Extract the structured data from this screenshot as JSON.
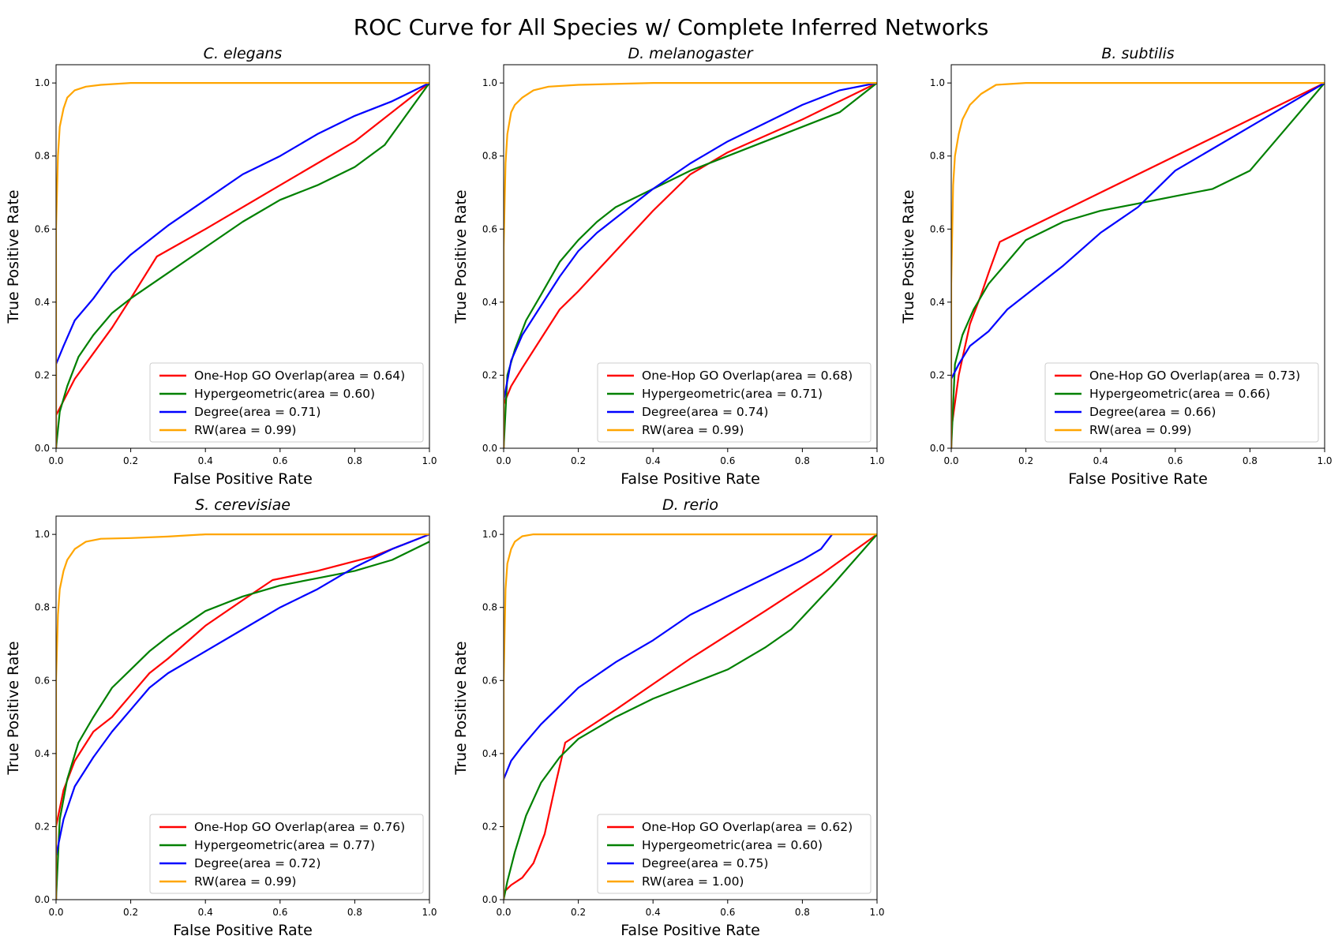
{
  "figure": {
    "title": "ROC Curve for All Species w/ Complete Inferred Networks"
  },
  "series_colors": {
    "One-Hop GO Overlap": "#ff0000",
    "Hypergeometric": "#008000",
    "Degree": "#0000ff",
    "RW": "#ffa500"
  },
  "chart_data": [
    {
      "type": "line",
      "title": "C. elegans",
      "xlabel": "False Positive Rate",
      "ylabel": "True Positive Rate",
      "xlim": [
        0,
        1
      ],
      "ylim": [
        0,
        1.05
      ],
      "xticks": [
        "0.0",
        "0.2",
        "0.4",
        "0.6",
        "0.8",
        "1.0"
      ],
      "yticks": [
        "0.0",
        "0.2",
        "0.4",
        "0.6",
        "0.8",
        "1.0"
      ],
      "grid": false,
      "legend_position": "lower-right",
      "series": [
        {
          "name": "One-Hop GO Overlap(area = 0.64)",
          "color": "#ff0000",
          "x": [
            0,
            0,
            0.02,
            0.05,
            0.1,
            0.15,
            0.2,
            0.27,
            0.4,
            0.6,
            0.8,
            1.0
          ],
          "y": [
            0,
            0.09,
            0.13,
            0.19,
            0.26,
            0.33,
            0.41,
            0.525,
            0.6,
            0.72,
            0.84,
            1.0
          ]
        },
        {
          "name": "Hypergeometric(area = 0.60)",
          "color": "#008000",
          "x": [
            0,
            0.01,
            0.03,
            0.06,
            0.1,
            0.15,
            0.2,
            0.3,
            0.4,
            0.5,
            0.6,
            0.7,
            0.8,
            0.88,
            1.0
          ],
          "y": [
            0,
            0.1,
            0.17,
            0.25,
            0.31,
            0.37,
            0.41,
            0.48,
            0.55,
            0.62,
            0.68,
            0.72,
            0.77,
            0.83,
            1.0
          ]
        },
        {
          "name": "Degree(area = 0.71)",
          "color": "#0000ff",
          "x": [
            0,
            0,
            0.02,
            0.05,
            0.1,
            0.15,
            0.2,
            0.3,
            0.4,
            0.5,
            0.6,
            0.7,
            0.8,
            0.9,
            1.0
          ],
          "y": [
            0,
            0.23,
            0.28,
            0.35,
            0.41,
            0.48,
            0.53,
            0.61,
            0.68,
            0.75,
            0.8,
            0.86,
            0.91,
            0.95,
            1.0
          ]
        },
        {
          "name": "RW(area = 0.99)",
          "color": "#ffa500",
          "x": [
            0,
            0,
            0.005,
            0.01,
            0.02,
            0.03,
            0.05,
            0.08,
            0.12,
            0.2,
            0.4,
            1.0
          ],
          "y": [
            0,
            0.6,
            0.8,
            0.88,
            0.93,
            0.96,
            0.98,
            0.99,
            0.995,
            1.0,
            1.0,
            1.0
          ]
        }
      ]
    },
    {
      "type": "line",
      "title": "D. melanogaster",
      "xlabel": "False Positive Rate",
      "ylabel": "True Positive Rate",
      "xlim": [
        0,
        1
      ],
      "ylim": [
        0,
        1.05
      ],
      "xticks": [
        "0.0",
        "0.2",
        "0.4",
        "0.6",
        "0.8",
        "1.0"
      ],
      "yticks": [
        "0.0",
        "0.2",
        "0.4",
        "0.6",
        "0.8",
        "1.0"
      ],
      "grid": false,
      "legend_position": "lower-right",
      "series": [
        {
          "name": "One-Hop GO Overlap(area = 0.68)",
          "color": "#ff0000",
          "x": [
            0,
            0,
            0.02,
            0.05,
            0.1,
            0.15,
            0.2,
            0.3,
            0.4,
            0.5,
            0.6,
            0.8,
            1.0
          ],
          "y": [
            0,
            0.12,
            0.17,
            0.22,
            0.3,
            0.38,
            0.43,
            0.54,
            0.65,
            0.75,
            0.81,
            0.9,
            1.0
          ]
        },
        {
          "name": "Hypergeometric(area = 0.71)",
          "color": "#008000",
          "x": [
            0,
            0.01,
            0.03,
            0.06,
            0.1,
            0.15,
            0.2,
            0.25,
            0.3,
            0.4,
            0.5,
            0.6,
            0.7,
            0.8,
            0.9,
            1.0
          ],
          "y": [
            0,
            0.2,
            0.27,
            0.35,
            0.42,
            0.51,
            0.57,
            0.62,
            0.66,
            0.71,
            0.76,
            0.8,
            0.84,
            0.88,
            0.92,
            1.0
          ]
        },
        {
          "name": "Degree(area = 0.74)",
          "color": "#0000ff",
          "x": [
            0,
            0,
            0.02,
            0.05,
            0.1,
            0.15,
            0.2,
            0.25,
            0.3,
            0.4,
            0.5,
            0.6,
            0.7,
            0.8,
            0.9,
            1.0
          ],
          "y": [
            0,
            0.13,
            0.24,
            0.31,
            0.39,
            0.47,
            0.54,
            0.59,
            0.63,
            0.71,
            0.78,
            0.84,
            0.89,
            0.94,
            0.98,
            1.0
          ]
        },
        {
          "name": "RW(area = 0.99)",
          "color": "#ffa500",
          "x": [
            0,
            0,
            0.005,
            0.01,
            0.02,
            0.03,
            0.05,
            0.08,
            0.12,
            0.2,
            0.4,
            1.0
          ],
          "y": [
            0,
            0.55,
            0.78,
            0.86,
            0.92,
            0.94,
            0.96,
            0.98,
            0.99,
            0.995,
            1.0,
            1.0
          ]
        }
      ]
    },
    {
      "type": "line",
      "title": "B. subtilis",
      "xlabel": "False Positive Rate",
      "ylabel": "True Positive Rate",
      "xlim": [
        0,
        1
      ],
      "ylim": [
        0,
        1.05
      ],
      "xticks": [
        "0.0",
        "0.2",
        "0.4",
        "0.6",
        "0.8",
        "1.0"
      ],
      "yticks": [
        "0.0",
        "0.2",
        "0.4",
        "0.6",
        "0.8",
        "1.0"
      ],
      "grid": false,
      "legend_position": "lower-right",
      "series": [
        {
          "name": "One-Hop GO Overlap(area = 0.73)",
          "color": "#ff0000",
          "x": [
            0,
            0,
            0.02,
            0.05,
            0.08,
            0.1,
            0.13,
            0.4,
            0.7,
            1.0
          ],
          "y": [
            0,
            0.05,
            0.2,
            0.34,
            0.42,
            0.48,
            0.565,
            0.7,
            0.85,
            1.0
          ]
        },
        {
          "name": "Hypergeometric(area = 0.66)",
          "color": "#008000",
          "x": [
            0,
            0.01,
            0.03,
            0.06,
            0.1,
            0.15,
            0.2,
            0.3,
            0.4,
            0.5,
            0.6,
            0.7,
            0.8,
            0.9,
            1.0
          ],
          "y": [
            0,
            0.23,
            0.31,
            0.38,
            0.45,
            0.51,
            0.57,
            0.62,
            0.65,
            0.67,
            0.69,
            0.71,
            0.76,
            0.88,
            1.0
          ]
        },
        {
          "name": "Degree(area = 0.66)",
          "color": "#0000ff",
          "x": [
            0,
            0,
            0.02,
            0.05,
            0.1,
            0.15,
            0.2,
            0.3,
            0.4,
            0.5,
            0.6,
            0.7,
            0.8,
            0.9,
            1.0
          ],
          "y": [
            0,
            0.19,
            0.23,
            0.28,
            0.32,
            0.38,
            0.42,
            0.5,
            0.59,
            0.66,
            0.76,
            0.82,
            0.88,
            0.94,
            1.0
          ]
        },
        {
          "name": "RW(area = 0.99)",
          "color": "#ffa500",
          "x": [
            0,
            0,
            0.005,
            0.01,
            0.02,
            0.03,
            0.05,
            0.08,
            0.12,
            0.2,
            1.0
          ],
          "y": [
            0,
            0.45,
            0.72,
            0.8,
            0.86,
            0.9,
            0.94,
            0.97,
            0.995,
            1.0,
            1.0
          ]
        }
      ]
    },
    {
      "type": "line",
      "title": "S. cerevisiae",
      "xlabel": "False Positive Rate",
      "ylabel": "True Positive Rate",
      "xlim": [
        0,
        1
      ],
      "ylim": [
        0,
        1.05
      ],
      "xticks": [
        "0.0",
        "0.2",
        "0.4",
        "0.6",
        "0.8",
        "1.0"
      ],
      "yticks": [
        "0.0",
        "0.2",
        "0.4",
        "0.6",
        "0.8",
        "1.0"
      ],
      "grid": false,
      "legend_position": "lower-right",
      "series": [
        {
          "name": "One-Hop GO Overlap(area = 0.76)",
          "color": "#ff0000",
          "x": [
            0,
            0,
            0.02,
            0.05,
            0.1,
            0.15,
            0.2,
            0.25,
            0.3,
            0.4,
            0.5,
            0.58,
            0.7,
            0.85,
            1.0
          ],
          "y": [
            0,
            0.2,
            0.3,
            0.38,
            0.46,
            0.5,
            0.56,
            0.62,
            0.66,
            0.75,
            0.82,
            0.875,
            0.9,
            0.94,
            1.0
          ]
        },
        {
          "name": "Hypergeometric(area = 0.77)",
          "color": "#008000",
          "x": [
            0,
            0.01,
            0.03,
            0.06,
            0.1,
            0.15,
            0.2,
            0.25,
            0.3,
            0.4,
            0.5,
            0.6,
            0.7,
            0.8,
            0.9,
            1.0
          ],
          "y": [
            0,
            0.22,
            0.33,
            0.43,
            0.5,
            0.58,
            0.63,
            0.68,
            0.72,
            0.79,
            0.83,
            0.86,
            0.88,
            0.9,
            0.93,
            0.98
          ]
        },
        {
          "name": "Degree(area = 0.72)",
          "color": "#0000ff",
          "x": [
            0,
            0,
            0.02,
            0.05,
            0.1,
            0.15,
            0.2,
            0.25,
            0.3,
            0.4,
            0.5,
            0.6,
            0.7,
            0.8,
            0.9,
            1.0
          ],
          "y": [
            0,
            0.12,
            0.22,
            0.31,
            0.39,
            0.46,
            0.52,
            0.58,
            0.62,
            0.68,
            0.74,
            0.8,
            0.85,
            0.91,
            0.96,
            1.0
          ]
        },
        {
          "name": "RW(area = 0.99)",
          "color": "#ffa500",
          "x": [
            0,
            0,
            0.005,
            0.01,
            0.02,
            0.03,
            0.05,
            0.08,
            0.12,
            0.2,
            0.3,
            0.4,
            1.0
          ],
          "y": [
            0,
            0.6,
            0.78,
            0.85,
            0.9,
            0.93,
            0.96,
            0.98,
            0.988,
            0.99,
            0.994,
            1.0,
            1.0
          ]
        }
      ]
    },
    {
      "type": "line",
      "title": "D. rerio",
      "xlabel": "False Positive Rate",
      "ylabel": "True Positive Rate",
      "xlim": [
        0,
        1
      ],
      "ylim": [
        0,
        1.05
      ],
      "xticks": [
        "0.0",
        "0.2",
        "0.4",
        "0.6",
        "0.8",
        "1.0"
      ],
      "yticks": [
        "0.0",
        "0.2",
        "0.4",
        "0.6",
        "0.8",
        "1.0"
      ],
      "grid": false,
      "legend_position": "lower-right",
      "series": [
        {
          "name": "One-Hop GO Overlap(area = 0.62)",
          "color": "#ff0000",
          "x": [
            0,
            0,
            0.02,
            0.05,
            0.08,
            0.11,
            0.14,
            0.165,
            0.3,
            0.5,
            0.7,
            0.85,
            1.0
          ],
          "y": [
            0,
            0.02,
            0.04,
            0.06,
            0.1,
            0.18,
            0.32,
            0.43,
            0.52,
            0.66,
            0.79,
            0.89,
            1.0
          ]
        },
        {
          "name": "Hypergeometric(area = 0.60)",
          "color": "#008000",
          "x": [
            0,
            0.01,
            0.03,
            0.06,
            0.1,
            0.15,
            0.2,
            0.3,
            0.4,
            0.5,
            0.6,
            0.7,
            0.77,
            0.88,
            1.0
          ],
          "y": [
            0,
            0.05,
            0.13,
            0.23,
            0.32,
            0.39,
            0.44,
            0.5,
            0.55,
            0.59,
            0.63,
            0.69,
            0.74,
            0.86,
            1.0
          ]
        },
        {
          "name": "Degree(area = 0.75)",
          "color": "#0000ff",
          "x": [
            0,
            0,
            0.02,
            0.05,
            0.1,
            0.15,
            0.2,
            0.3,
            0.4,
            0.5,
            0.6,
            0.7,
            0.8,
            0.85,
            0.88
          ],
          "y": [
            0,
            0.33,
            0.38,
            0.42,
            0.48,
            0.53,
            0.58,
            0.65,
            0.71,
            0.78,
            0.83,
            0.88,
            0.93,
            0.96,
            1.0
          ]
        },
        {
          "name": "RW(area = 1.00)",
          "color": "#ffa500",
          "x": [
            0,
            0,
            0.005,
            0.01,
            0.02,
            0.03,
            0.05,
            0.08,
            1.0
          ],
          "y": [
            0,
            0.6,
            0.85,
            0.92,
            0.96,
            0.98,
            0.995,
            1.0,
            1.0
          ]
        }
      ]
    }
  ]
}
